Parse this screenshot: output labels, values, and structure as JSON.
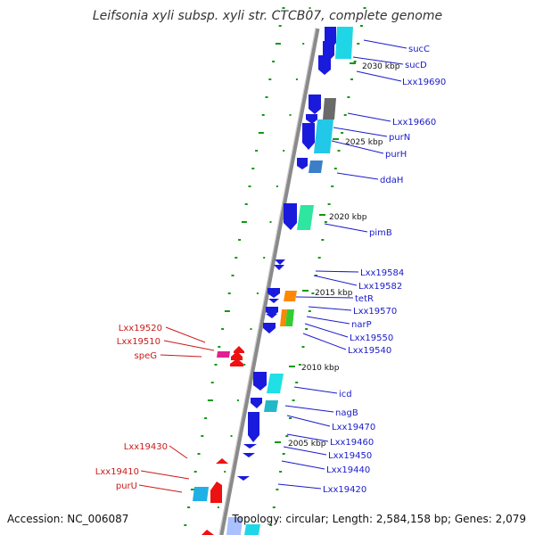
{
  "title": "Leifsonia xyli subsp. xyli str. CTCB07, complete genome",
  "footer": {
    "accession": "Accession: NC_006087",
    "topology": "Topology: circular; Length: 2,584,158 bp; Genes: 2,079"
  },
  "colors": {
    "forward_label": "#1a1acc",
    "reverse_label": "#cc1a1a",
    "backbone": "#8a8a8a",
    "dots": "#119911"
  },
  "ticks": [
    "2030 kbp",
    "2025 kbp",
    "2020 kbp",
    "2015 kbp",
    "2010 kbp",
    "2005 kbp"
  ],
  "forward_labels": [
    "sucC",
    "sucD",
    "Lxx19690",
    "Lxx19660",
    "purN",
    "purH",
    "ddaH",
    "pimB",
    "Lxx19584",
    "Lxx19582",
    "tetR",
    "Lxx19570",
    "narP",
    "Lxx19550",
    "Lxx19540",
    "icd",
    "nagB",
    "Lxx19470",
    "Lxx19460",
    "Lxx19450",
    "Lxx19440",
    "Lxx19420"
  ],
  "reverse_labels": [
    "Lxx19520",
    "Lxx19510",
    "speG",
    "Lxx19430",
    "Lxx19410",
    "purU"
  ]
}
